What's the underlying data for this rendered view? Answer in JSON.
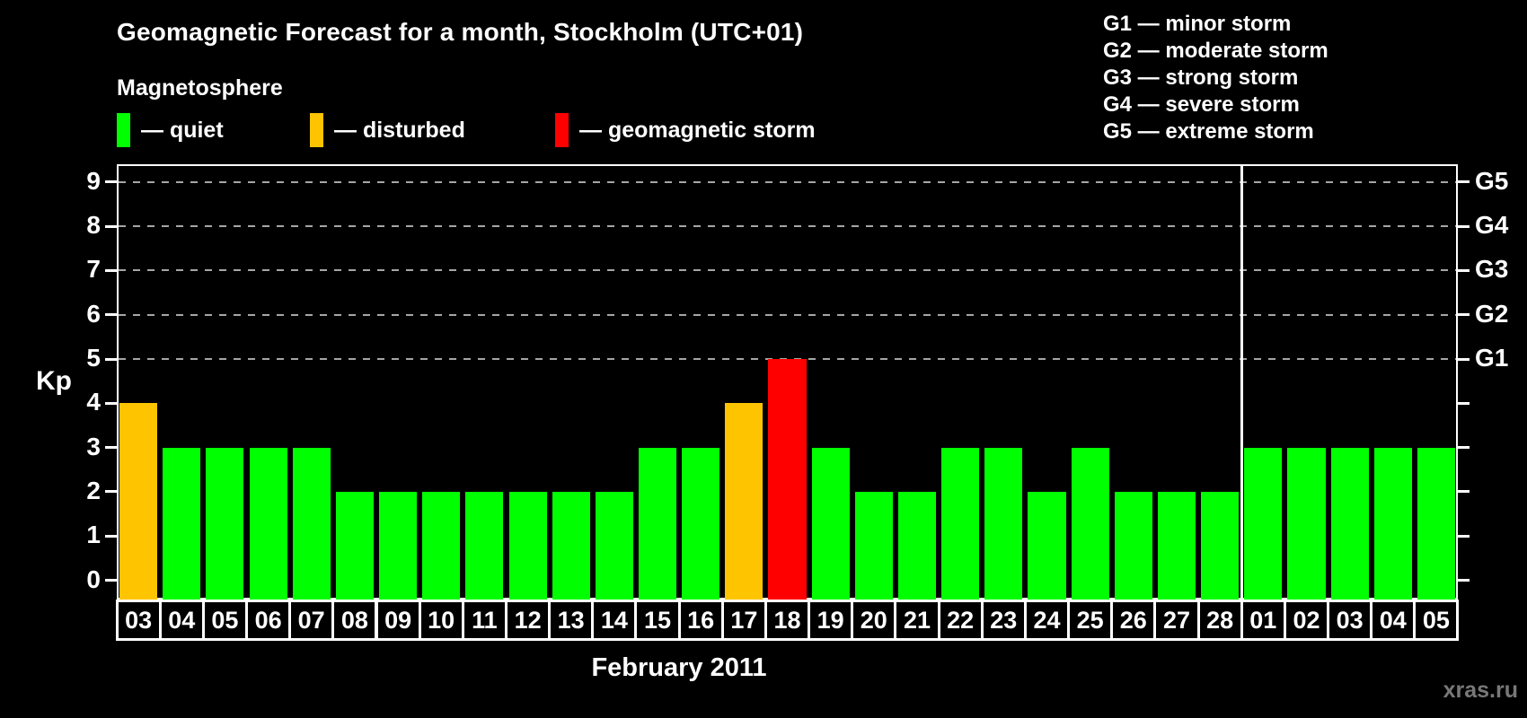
{
  "header": {
    "title": "Geomagnetic Forecast for a month, Stockholm (UTC+01)"
  },
  "magnetosphere_legend": {
    "title": "Magnetosphere",
    "items": [
      {
        "status": "quiet",
        "label": "— quiet",
        "color": "#00ff00"
      },
      {
        "status": "disturbed",
        "label": "— disturbed",
        "color": "#ffc400"
      },
      {
        "status": "storm",
        "label": "— geomagnetic storm",
        "color": "#ff0000"
      }
    ]
  },
  "g_scale_legend": [
    "G1 — minor storm",
    "G2 — moderate storm",
    "G3 — strong storm",
    "G4 — severe storm",
    "G5 — extreme storm"
  ],
  "watermark": "xras.ru",
  "chart_data": {
    "type": "bar",
    "title": "Geomagnetic Forecast for a month, Stockholm (UTC+01)",
    "xlabel": "February 2011",
    "ylabel": "Kp",
    "ylim": [
      0,
      9
    ],
    "y_ticks": [
      0,
      1,
      2,
      3,
      4,
      5,
      6,
      7,
      8,
      9
    ],
    "gridlines_at": [
      5,
      6,
      7,
      8,
      9
    ],
    "grid_style": "horizontal dashed gray at Kp 5–9",
    "right_axis": {
      "labels": [
        "G1",
        "G2",
        "G3",
        "G4",
        "G5"
      ],
      "values": [
        5,
        6,
        7,
        8,
        9
      ]
    },
    "categories": [
      "03",
      "04",
      "05",
      "06",
      "07",
      "08",
      "09",
      "10",
      "11",
      "12",
      "13",
      "14",
      "15",
      "16",
      "17",
      "18",
      "19",
      "20",
      "21",
      "22",
      "23",
      "24",
      "25",
      "26",
      "27",
      "28",
      "01",
      "02",
      "03",
      "04",
      "05"
    ],
    "values": [
      4,
      3,
      3,
      3,
      3,
      2,
      2,
      2,
      2,
      2,
      2,
      2,
      3,
      3,
      4,
      5,
      3,
      2,
      2,
      3,
      3,
      2,
      3,
      2,
      2,
      2,
      3,
      3,
      3,
      3,
      3
    ],
    "statuses": [
      "disturbed",
      "quiet",
      "quiet",
      "quiet",
      "quiet",
      "quiet",
      "quiet",
      "quiet",
      "quiet",
      "quiet",
      "quiet",
      "quiet",
      "quiet",
      "quiet",
      "disturbed",
      "storm",
      "quiet",
      "quiet",
      "quiet",
      "quiet",
      "quiet",
      "quiet",
      "quiet",
      "quiet",
      "quiet",
      "quiet",
      "quiet",
      "quiet",
      "quiet",
      "quiet",
      "quiet"
    ],
    "status_colors": {
      "quiet": "#00ff00",
      "disturbed": "#ffc400",
      "storm": "#ff0000"
    },
    "month_separator_after_index": 25,
    "legend_position": "top-left"
  }
}
